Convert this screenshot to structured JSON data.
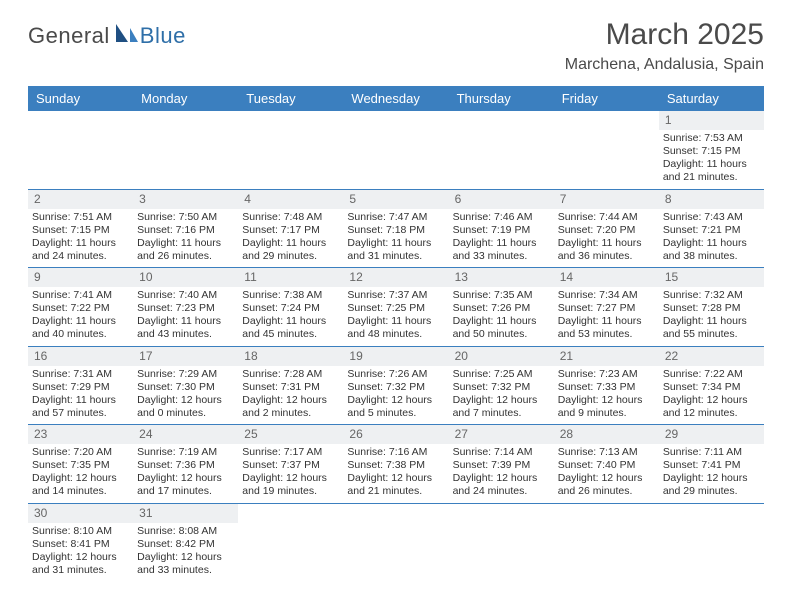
{
  "logo": {
    "general": "General",
    "blue": "Blue"
  },
  "title": "March 2025",
  "location": "Marchena, Andalusia, Spain",
  "colors": {
    "header_bg": "#3b7fbf",
    "header_text": "#ffffff",
    "border": "#3b7fbf",
    "daynum_bg": "#eef0f2",
    "daynum_text": "#666666",
    "body_text": "#333333",
    "title_text": "#4a4a4a",
    "logo_blue": "#2f6fa8"
  },
  "day_headers": [
    "Sunday",
    "Monday",
    "Tuesday",
    "Wednesday",
    "Thursday",
    "Friday",
    "Saturday"
  ],
  "weeks": [
    [
      {
        "n": "",
        "sr": "",
        "ss": "",
        "dl": ""
      },
      {
        "n": "",
        "sr": "",
        "ss": "",
        "dl": ""
      },
      {
        "n": "",
        "sr": "",
        "ss": "",
        "dl": ""
      },
      {
        "n": "",
        "sr": "",
        "ss": "",
        "dl": ""
      },
      {
        "n": "",
        "sr": "",
        "ss": "",
        "dl": ""
      },
      {
        "n": "",
        "sr": "",
        "ss": "",
        "dl": ""
      },
      {
        "n": "1",
        "sr": "Sunrise: 7:53 AM",
        "ss": "Sunset: 7:15 PM",
        "dl": "Daylight: 11 hours and 21 minutes."
      }
    ],
    [
      {
        "n": "2",
        "sr": "Sunrise: 7:51 AM",
        "ss": "Sunset: 7:15 PM",
        "dl": "Daylight: 11 hours and 24 minutes."
      },
      {
        "n": "3",
        "sr": "Sunrise: 7:50 AM",
        "ss": "Sunset: 7:16 PM",
        "dl": "Daylight: 11 hours and 26 minutes."
      },
      {
        "n": "4",
        "sr": "Sunrise: 7:48 AM",
        "ss": "Sunset: 7:17 PM",
        "dl": "Daylight: 11 hours and 29 minutes."
      },
      {
        "n": "5",
        "sr": "Sunrise: 7:47 AM",
        "ss": "Sunset: 7:18 PM",
        "dl": "Daylight: 11 hours and 31 minutes."
      },
      {
        "n": "6",
        "sr": "Sunrise: 7:46 AM",
        "ss": "Sunset: 7:19 PM",
        "dl": "Daylight: 11 hours and 33 minutes."
      },
      {
        "n": "7",
        "sr": "Sunrise: 7:44 AM",
        "ss": "Sunset: 7:20 PM",
        "dl": "Daylight: 11 hours and 36 minutes."
      },
      {
        "n": "8",
        "sr": "Sunrise: 7:43 AM",
        "ss": "Sunset: 7:21 PM",
        "dl": "Daylight: 11 hours and 38 minutes."
      }
    ],
    [
      {
        "n": "9",
        "sr": "Sunrise: 7:41 AM",
        "ss": "Sunset: 7:22 PM",
        "dl": "Daylight: 11 hours and 40 minutes."
      },
      {
        "n": "10",
        "sr": "Sunrise: 7:40 AM",
        "ss": "Sunset: 7:23 PM",
        "dl": "Daylight: 11 hours and 43 minutes."
      },
      {
        "n": "11",
        "sr": "Sunrise: 7:38 AM",
        "ss": "Sunset: 7:24 PM",
        "dl": "Daylight: 11 hours and 45 minutes."
      },
      {
        "n": "12",
        "sr": "Sunrise: 7:37 AM",
        "ss": "Sunset: 7:25 PM",
        "dl": "Daylight: 11 hours and 48 minutes."
      },
      {
        "n": "13",
        "sr": "Sunrise: 7:35 AM",
        "ss": "Sunset: 7:26 PM",
        "dl": "Daylight: 11 hours and 50 minutes."
      },
      {
        "n": "14",
        "sr": "Sunrise: 7:34 AM",
        "ss": "Sunset: 7:27 PM",
        "dl": "Daylight: 11 hours and 53 minutes."
      },
      {
        "n": "15",
        "sr": "Sunrise: 7:32 AM",
        "ss": "Sunset: 7:28 PM",
        "dl": "Daylight: 11 hours and 55 minutes."
      }
    ],
    [
      {
        "n": "16",
        "sr": "Sunrise: 7:31 AM",
        "ss": "Sunset: 7:29 PM",
        "dl": "Daylight: 11 hours and 57 minutes."
      },
      {
        "n": "17",
        "sr": "Sunrise: 7:29 AM",
        "ss": "Sunset: 7:30 PM",
        "dl": "Daylight: 12 hours and 0 minutes."
      },
      {
        "n": "18",
        "sr": "Sunrise: 7:28 AM",
        "ss": "Sunset: 7:31 PM",
        "dl": "Daylight: 12 hours and 2 minutes."
      },
      {
        "n": "19",
        "sr": "Sunrise: 7:26 AM",
        "ss": "Sunset: 7:32 PM",
        "dl": "Daylight: 12 hours and 5 minutes."
      },
      {
        "n": "20",
        "sr": "Sunrise: 7:25 AM",
        "ss": "Sunset: 7:32 PM",
        "dl": "Daylight: 12 hours and 7 minutes."
      },
      {
        "n": "21",
        "sr": "Sunrise: 7:23 AM",
        "ss": "Sunset: 7:33 PM",
        "dl": "Daylight: 12 hours and 9 minutes."
      },
      {
        "n": "22",
        "sr": "Sunrise: 7:22 AM",
        "ss": "Sunset: 7:34 PM",
        "dl": "Daylight: 12 hours and 12 minutes."
      }
    ],
    [
      {
        "n": "23",
        "sr": "Sunrise: 7:20 AM",
        "ss": "Sunset: 7:35 PM",
        "dl": "Daylight: 12 hours and 14 minutes."
      },
      {
        "n": "24",
        "sr": "Sunrise: 7:19 AM",
        "ss": "Sunset: 7:36 PM",
        "dl": "Daylight: 12 hours and 17 minutes."
      },
      {
        "n": "25",
        "sr": "Sunrise: 7:17 AM",
        "ss": "Sunset: 7:37 PM",
        "dl": "Daylight: 12 hours and 19 minutes."
      },
      {
        "n": "26",
        "sr": "Sunrise: 7:16 AM",
        "ss": "Sunset: 7:38 PM",
        "dl": "Daylight: 12 hours and 21 minutes."
      },
      {
        "n": "27",
        "sr": "Sunrise: 7:14 AM",
        "ss": "Sunset: 7:39 PM",
        "dl": "Daylight: 12 hours and 24 minutes."
      },
      {
        "n": "28",
        "sr": "Sunrise: 7:13 AM",
        "ss": "Sunset: 7:40 PM",
        "dl": "Daylight: 12 hours and 26 minutes."
      },
      {
        "n": "29",
        "sr": "Sunrise: 7:11 AM",
        "ss": "Sunset: 7:41 PM",
        "dl": "Daylight: 12 hours and 29 minutes."
      }
    ],
    [
      {
        "n": "30",
        "sr": "Sunrise: 8:10 AM",
        "ss": "Sunset: 8:41 PM",
        "dl": "Daylight: 12 hours and 31 minutes."
      },
      {
        "n": "31",
        "sr": "Sunrise: 8:08 AM",
        "ss": "Sunset: 8:42 PM",
        "dl": "Daylight: 12 hours and 33 minutes."
      },
      {
        "n": "",
        "sr": "",
        "ss": "",
        "dl": ""
      },
      {
        "n": "",
        "sr": "",
        "ss": "",
        "dl": ""
      },
      {
        "n": "",
        "sr": "",
        "ss": "",
        "dl": ""
      },
      {
        "n": "",
        "sr": "",
        "ss": "",
        "dl": ""
      },
      {
        "n": "",
        "sr": "",
        "ss": "",
        "dl": ""
      }
    ]
  ]
}
